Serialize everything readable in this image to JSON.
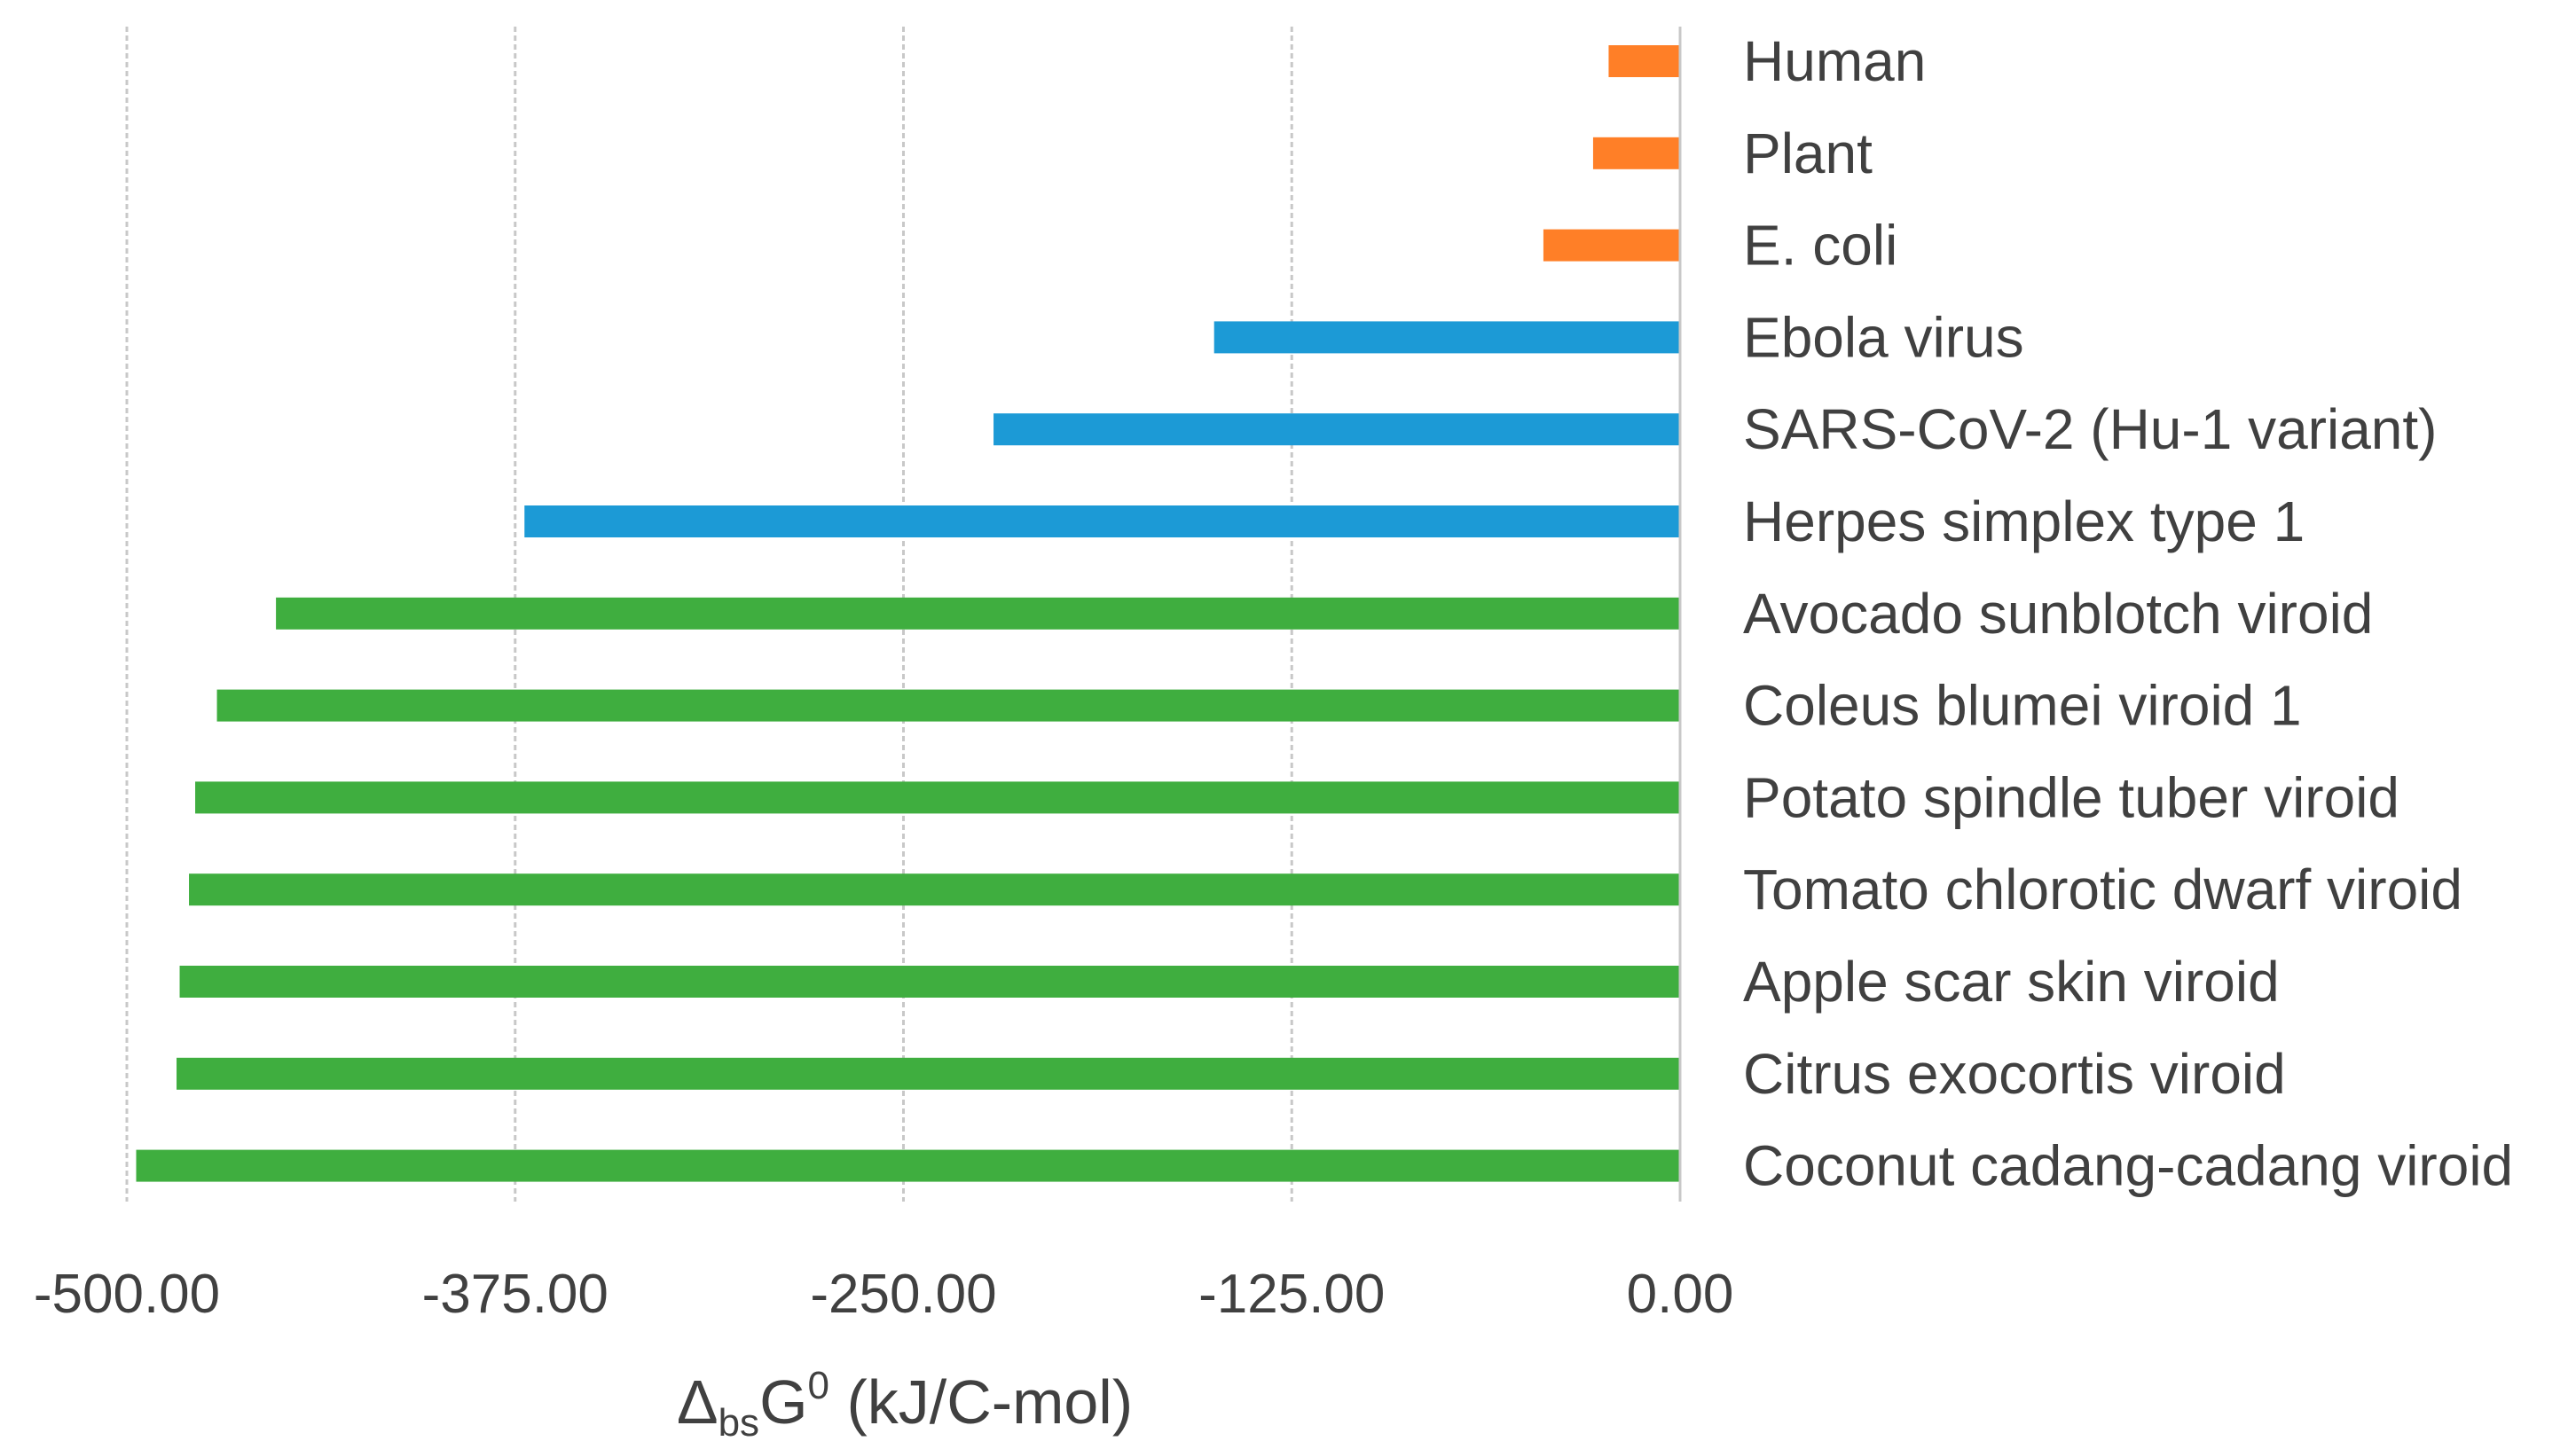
{
  "chart_data": {
    "type": "bar",
    "orientation": "horizontal",
    "title": "",
    "xlabel_parts": {
      "delta": "Δ",
      "subscript": "bs",
      "symbol": "G",
      "superscript": "0",
      "units": " (kJ/C-mol)"
    },
    "xlim": [
      -500,
      0
    ],
    "xticks": [
      -500,
      -375,
      -250,
      -125,
      0
    ],
    "xtick_labels": [
      "-500.00",
      "-375.00",
      "-250.00",
      "-125.00",
      "0.00"
    ],
    "grid": true,
    "legend": "none",
    "categories": [
      "Human",
      "Plant",
      "E. coli",
      "Ebola virus",
      "SARS-CoV-2 (Hu-1 variant)",
      "Herpes simplex type 1",
      "Avocado sunblotch viroid",
      "Coleus blumei viroid 1",
      "Potato spindle tuber viroid",
      "Tomato chlorotic dwarf viroid",
      "Apple scar skin viroid",
      "Citrus exocortis viroid",
      "Coconut cadang-cadang viroid"
    ],
    "values": [
      -23,
      -28,
      -44,
      -150,
      -221,
      -372,
      -452,
      -471,
      -478,
      -480,
      -483,
      -484,
      -497
    ],
    "bar_colors": [
      "#ff7f27",
      "#ff7f27",
      "#ff7f27",
      "#1c9ad6",
      "#1c9ad6",
      "#1c9ad6",
      "#3fae3f",
      "#3fae3f",
      "#3fae3f",
      "#3fae3f",
      "#3fae3f",
      "#3fae3f",
      "#3fae3f"
    ]
  }
}
